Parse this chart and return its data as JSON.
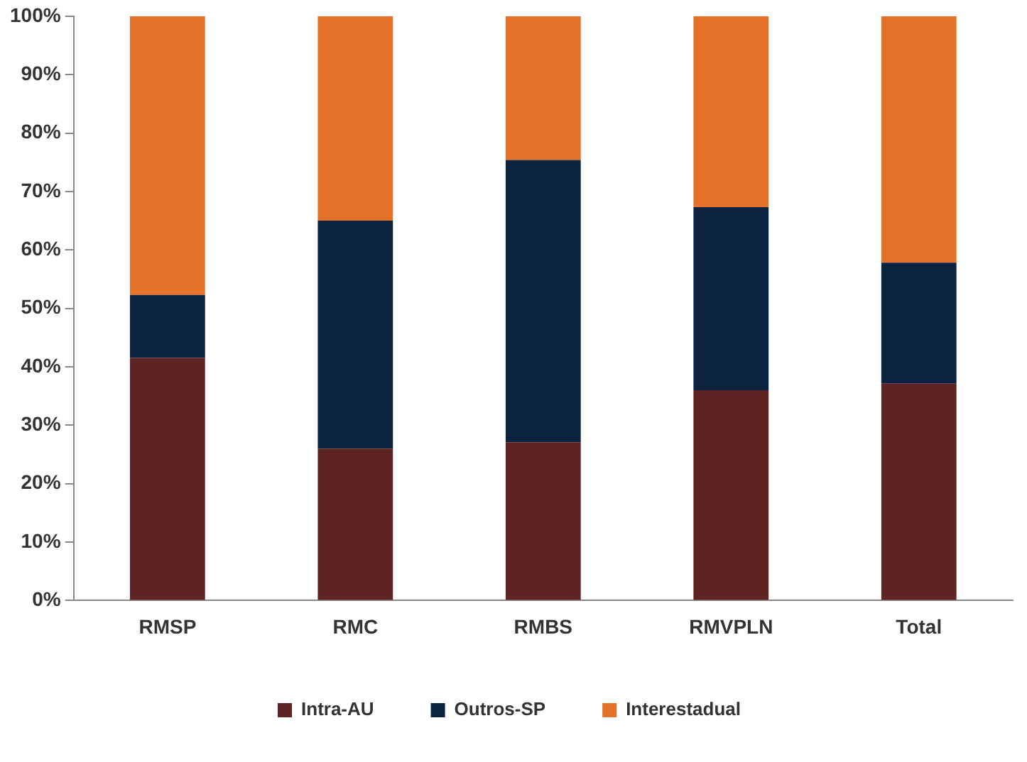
{
  "chart_data": {
    "type": "bar",
    "stacked": true,
    "categories": [
      "RMSP",
      "RMC",
      "RMBS",
      "RMVPLN",
      "Total"
    ],
    "series": [
      {
        "name": "Intra-AU",
        "color": "#5e2323",
        "values": [
          41.5,
          26.0,
          27.1,
          36.0,
          37.1
        ]
      },
      {
        "name": "Outros-SP",
        "color": "#0c2340",
        "values": [
          10.8,
          39.0,
          48.3,
          31.3,
          20.7
        ]
      },
      {
        "name": "Interestadual",
        "color": "#e5722a",
        "values": [
          47.7,
          35.0,
          24.6,
          32.7,
          42.2
        ]
      }
    ],
    "ylim": [
      0,
      100
    ],
    "yticks": [
      {
        "value": 0,
        "label": "0%"
      },
      {
        "value": 10,
        "label": "10%"
      },
      {
        "value": 20,
        "label": "20%"
      },
      {
        "value": 30,
        "label": "30%"
      },
      {
        "value": 40,
        "label": "40%"
      },
      {
        "value": 50,
        "label": "50%"
      },
      {
        "value": 60,
        "label": "60%"
      },
      {
        "value": 70,
        "label": "70%"
      },
      {
        "value": 80,
        "label": "80%"
      },
      {
        "value": 90,
        "label": "90%"
      },
      {
        "value": 100,
        "label": "100%"
      }
    ],
    "grid": false,
    "legend": "bottom"
  }
}
